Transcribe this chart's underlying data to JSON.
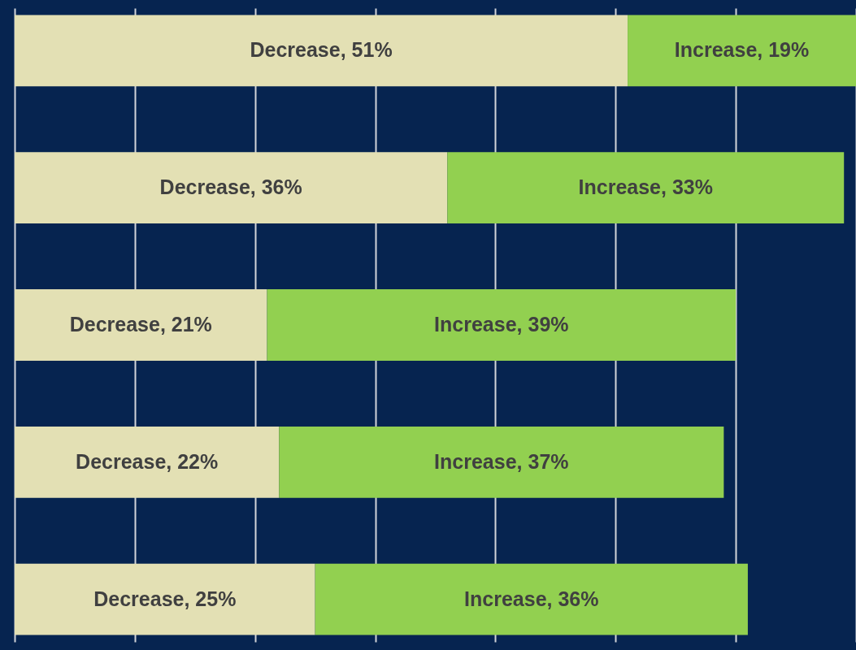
{
  "chart_data": {
    "type": "bar",
    "orientation": "horizontal",
    "stacked": true,
    "categories": [
      null,
      null,
      null,
      null,
      null
    ],
    "series": [
      {
        "color": "#e3e0b4",
        "values": [
          51,
          36,
          21,
          22,
          25
        ],
        "value_labels": [
          "Decrease, 51%",
          "Decrease, 36%",
          "Decrease, 21%",
          "Decrease, 22%",
          "Decrease, 25%"
        ]
      },
      {
        "color": "#92d050",
        "values": [
          19,
          33,
          39,
          37,
          36
        ],
        "value_labels": [
          "Increase, 19%",
          "Increase, 33%",
          "Increase, 39%",
          "Increase, 37%",
          "Increase, 36%"
        ]
      }
    ],
    "tick_labels": false,
    "grid": "x"
  }
}
